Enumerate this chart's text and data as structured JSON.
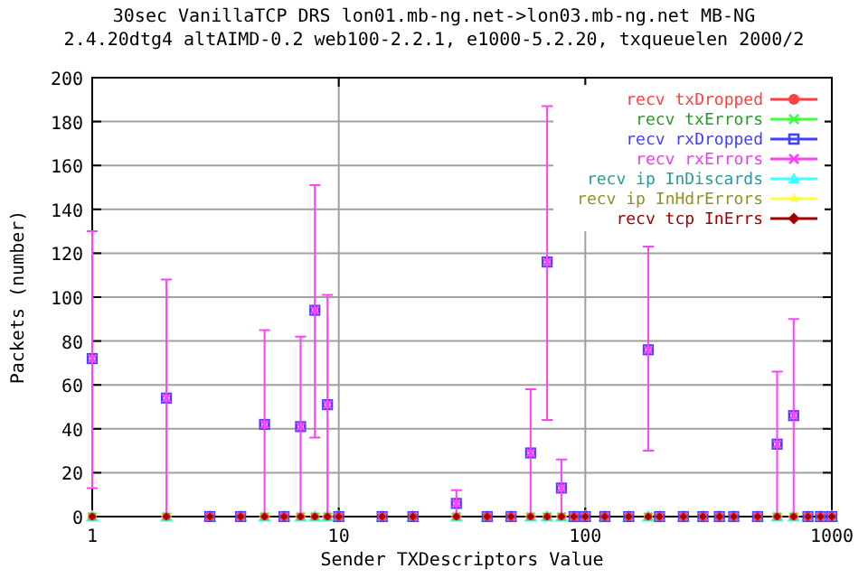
{
  "chart_data": {
    "type": "scatter",
    "title": "30sec VanillaTCP DRS lon01.mb-ng.net->lon03.mb-ng.net MB-NG",
    "subtitle": "2.4.20dtg4 altAIMD-0.2 web100-2.2.1, e1000-5.2.20, txqueuelen 2000/2",
    "xlabel": "Sender TXDescriptors Value",
    "ylabel": "Packets (number)",
    "log": "x",
    "x": [
      1,
      2,
      3,
      4,
      5,
      6,
      7,
      8,
      9,
      10,
      15,
      20,
      30,
      40,
      50,
      60,
      70,
      80,
      90,
      100,
      120,
      150,
      180,
      200,
      250,
      300,
      350,
      400,
      500,
      600,
      700,
      800,
      900,
      1000
    ],
    "xlim": [
      1,
      1000
    ],
    "xticks": [
      1,
      10,
      100,
      1000
    ],
    "ylim": [
      0,
      200
    ],
    "yticks": [
      0,
      20,
      40,
      60,
      80,
      100,
      120,
      140,
      160,
      180,
      200
    ],
    "grid": true,
    "legend": "top right",
    "series": [
      {
        "name": "recv txDropped",
        "color": "#ff4040",
        "marker": "circle",
        "values": [
          0,
          0,
          0,
          0,
          0,
          0,
          0,
          0,
          0,
          0,
          0,
          0,
          0,
          0,
          0,
          0,
          0,
          0,
          0,
          0,
          0,
          0,
          0,
          0,
          0,
          0,
          0,
          0,
          0,
          0,
          0,
          0,
          0,
          0
        ]
      },
      {
        "name": "recv txErrors",
        "color": "#40ff40",
        "marker": "cross",
        "values": [
          0,
          0,
          0,
          0,
          0,
          0,
          0,
          0,
          0,
          0,
          0,
          0,
          0,
          0,
          0,
          0,
          0,
          0,
          0,
          0,
          0,
          0,
          0,
          0,
          0,
          0,
          0,
          0,
          0,
          0,
          0,
          0,
          0,
          0
        ]
      },
      {
        "name": "recv rxDropped",
        "color": "#4040ff",
        "marker": "square",
        "values": [
          72,
          54,
          0,
          0,
          42,
          0,
          41,
          94,
          51,
          0,
          0,
          0,
          6,
          0,
          0,
          29,
          116,
          13,
          0,
          0,
          0,
          0,
          76,
          0,
          0,
          0,
          0,
          0,
          0,
          33,
          46,
          0,
          0,
          0
        ]
      },
      {
        "name": "recv rxErrors",
        "color": "#ff40ff",
        "marker": "cross",
        "values": [
          72,
          54,
          0,
          0,
          42,
          0,
          41,
          94,
          51,
          0,
          0,
          0,
          6,
          0,
          0,
          29,
          116,
          13,
          0,
          0,
          0,
          0,
          76,
          0,
          0,
          0,
          0,
          0,
          0,
          33,
          46,
          0,
          0,
          0
        ],
        "errors": [
          [
            13,
            130
          ],
          [
            0,
            108
          ],
          null,
          null,
          [
            0,
            85
          ],
          null,
          [
            0,
            82
          ],
          [
            36,
            151
          ],
          [
            0,
            101
          ],
          null,
          null,
          null,
          [
            0,
            12
          ],
          null,
          null,
          [
            0,
            58
          ],
          [
            44,
            187
          ],
          [
            0,
            26
          ],
          null,
          null,
          null,
          null,
          [
            30,
            123
          ],
          null,
          null,
          null,
          null,
          null,
          null,
          [
            0,
            66
          ],
          [
            0,
            90
          ],
          null,
          null,
          null
        ]
      },
      {
        "name": "recv ip InDiscards",
        "color": "#40ffff",
        "marker": "triangle",
        "values": [
          0,
          0,
          0,
          0,
          0,
          0,
          0,
          0,
          0,
          0,
          0,
          0,
          0,
          0,
          0,
          0,
          0,
          0,
          0,
          0,
          0,
          0,
          0,
          0,
          0,
          0,
          0,
          0,
          0,
          0,
          0,
          0,
          0,
          0
        ]
      },
      {
        "name": "recv ip InHdrErrors",
        "color": "#ffff40",
        "marker": "star",
        "values": [
          0,
          0,
          0,
          0,
          0,
          0,
          0,
          0,
          0,
          0,
          0,
          0,
          0,
          0,
          0,
          0,
          0,
          0,
          0,
          0,
          0,
          0,
          0,
          0,
          0,
          0,
          0,
          0,
          0,
          0,
          0,
          0,
          0,
          0
        ]
      },
      {
        "name": "recv tcp InErrs",
        "color": "#a00000",
        "marker": "diamond",
        "values": [
          0,
          0,
          0,
          0,
          0,
          0,
          0,
          0,
          0,
          0,
          0,
          0,
          0,
          0,
          0,
          0,
          0,
          0,
          0,
          0,
          0,
          0,
          0,
          0,
          0,
          0,
          0,
          0,
          0,
          0,
          0,
          0,
          0,
          0
        ]
      }
    ]
  }
}
